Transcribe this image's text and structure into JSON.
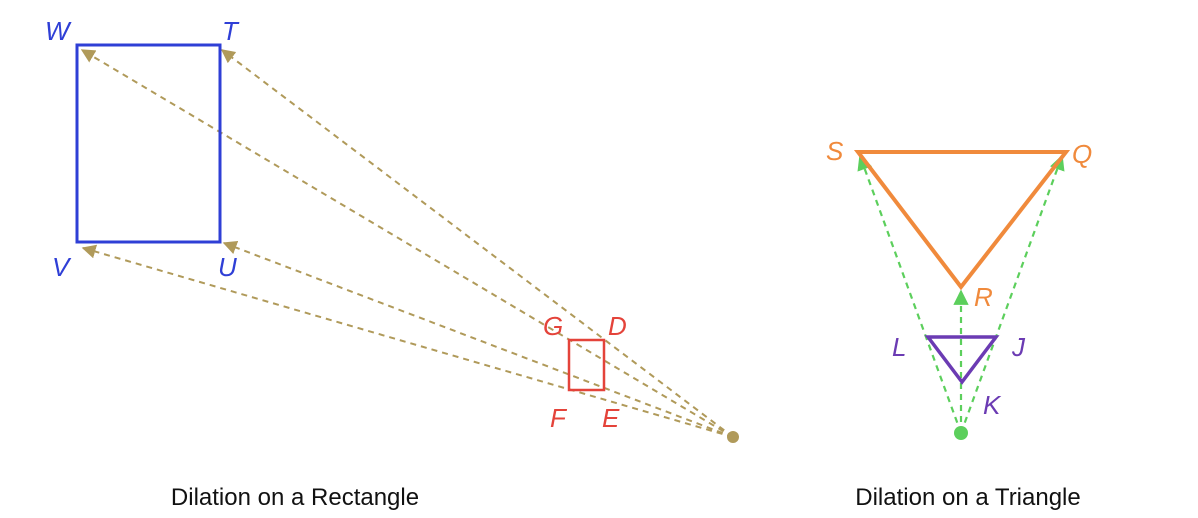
{
  "colors": {
    "rect_image": "#2f3fd6",
    "rect_pre": "#e4433a",
    "rect_rays": "#b09a5a",
    "tri_image": "#f08a3c",
    "tri_pre": "#6b3bb3",
    "tri_rays": "#5ccf5c"
  },
  "rectangle_figure": {
    "caption": "Dilation on a Rectangle",
    "image_labels": {
      "W": "W",
      "T": "T",
      "U": "U",
      "V": "V"
    },
    "preimage_labels": {
      "G": "G",
      "D": "D",
      "E": "E",
      "F": "F"
    }
  },
  "triangle_figure": {
    "caption": "Dilation on a Triangle",
    "image_labels": {
      "S": "S",
      "Q": "Q",
      "R": "R"
    },
    "preimage_labels": {
      "L": "L",
      "J": "J",
      "K": "K"
    }
  }
}
